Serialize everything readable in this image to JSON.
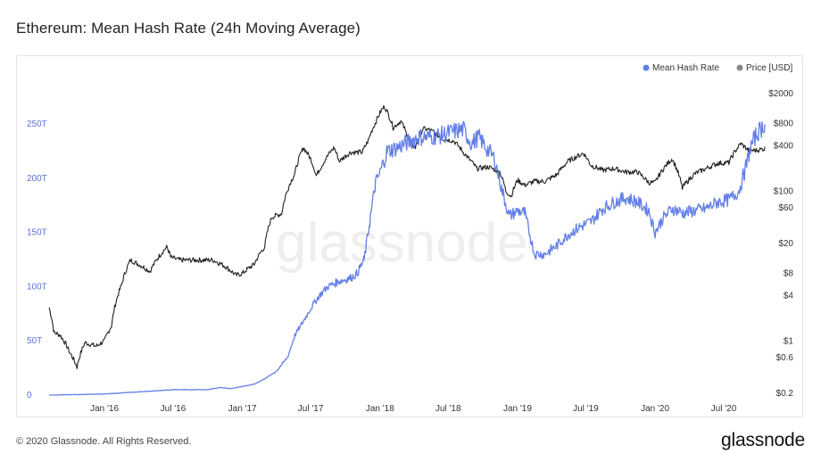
{
  "page": {
    "title": "Ethereum: Mean Hash Rate (24h Moving Average)",
    "copyright": "© 2020 Glassnode. All Rights Reserved.",
    "brand": "glassnode",
    "watermark": "glassnode"
  },
  "colors": {
    "hash": "#627ee6",
    "price": "#222222",
    "legend_price_dot": "#888888"
  },
  "chart_data": {
    "type": "line",
    "title": "Ethereum: Mean Hash Rate (24h Moving Average)",
    "legend_position": "top-right",
    "series": [
      {
        "name": "Mean Hash Rate",
        "axis": "left",
        "unit": "H/s"
      },
      {
        "name": "Price [USD]",
        "axis": "right",
        "scale": "log"
      }
    ],
    "x_labels": [
      "Jan '16",
      "Jul '16",
      "Jan '17",
      "Jul '17",
      "Jan '18",
      "Jul '18",
      "Jan '19",
      "Jul '19",
      "Jan '20",
      "Jul '20"
    ],
    "x_range": [
      "2015-08-07",
      "2020-10-18"
    ],
    "y_left_ticks": [
      "0",
      "50T",
      "100T",
      "150T",
      "200T",
      "250T"
    ],
    "y_left_range": [
      0,
      250
    ],
    "y_right_ticks": [
      "$0.2",
      "$0.6",
      "$1",
      "$4",
      "$8",
      "$20",
      "$60",
      "$100",
      "$400",
      "$800",
      "$2000"
    ],
    "y_right_values": [
      0.2,
      0.6,
      1,
      4,
      8,
      20,
      60,
      100,
      400,
      800,
      2000
    ],
    "hash_rate_T": [
      [
        "2015-08-07",
        0
      ],
      [
        "2016-01-01",
        1
      ],
      [
        "2016-04-01",
        3
      ],
      [
        "2016-07-01",
        5
      ],
      [
        "2016-10-01",
        5
      ],
      [
        "2016-11-01",
        7
      ],
      [
        "2016-12-01",
        6
      ],
      [
        "2017-01-01",
        8
      ],
      [
        "2017-02-01",
        10
      ],
      [
        "2017-03-01",
        15
      ],
      [
        "2017-04-01",
        22
      ],
      [
        "2017-05-01",
        35
      ],
      [
        "2017-05-20",
        55
      ],
      [
        "2017-06-15",
        70
      ],
      [
        "2017-07-01",
        80
      ],
      [
        "2017-07-20",
        90
      ],
      [
        "2017-08-15",
        100
      ],
      [
        "2017-09-15",
        105
      ],
      [
        "2017-10-15",
        108
      ],
      [
        "2017-11-01",
        112
      ],
      [
        "2017-11-20",
        125
      ],
      [
        "2017-12-05",
        160
      ],
      [
        "2017-12-20",
        195
      ],
      [
        "2018-01-01",
        205
      ],
      [
        "2018-01-20",
        225
      ],
      [
        "2018-02-15",
        228
      ],
      [
        "2018-03-15",
        233
      ],
      [
        "2018-04-15",
        238
      ],
      [
        "2018-05-15",
        238
      ],
      [
        "2018-06-15",
        240
      ],
      [
        "2018-07-15",
        243
      ],
      [
        "2018-08-10",
        245
      ],
      [
        "2018-09-01",
        232
      ],
      [
        "2018-09-20",
        238
      ],
      [
        "2018-10-10",
        228
      ],
      [
        "2018-11-01",
        218
      ],
      [
        "2018-11-20",
        190
      ],
      [
        "2018-12-10",
        165
      ],
      [
        "2019-01-01",
        170
      ],
      [
        "2019-01-20",
        168
      ],
      [
        "2019-02-15",
        130
      ],
      [
        "2019-03-15",
        130
      ],
      [
        "2019-04-15",
        138
      ],
      [
        "2019-05-15",
        148
      ],
      [
        "2019-06-15",
        155
      ],
      [
        "2019-07-15",
        160
      ],
      [
        "2019-08-15",
        172
      ],
      [
        "2019-09-15",
        178
      ],
      [
        "2019-10-15",
        182
      ],
      [
        "2019-11-15",
        178
      ],
      [
        "2019-12-15",
        170
      ],
      [
        "2020-01-01",
        150
      ],
      [
        "2020-01-20",
        162
      ],
      [
        "2020-02-15",
        172
      ],
      [
        "2020-03-15",
        168
      ],
      [
        "2020-04-15",
        170
      ],
      [
        "2020-05-15",
        172
      ],
      [
        "2020-06-15",
        178
      ],
      [
        "2020-07-15",
        180
      ],
      [
        "2020-08-10",
        188
      ],
      [
        "2020-08-25",
        205
      ],
      [
        "2020-09-10",
        228
      ],
      [
        "2020-09-25",
        240
      ],
      [
        "2020-10-18",
        250
      ]
    ],
    "price_usd": [
      [
        "2015-08-07",
        2.8
      ],
      [
        "2015-08-20",
        1.3
      ],
      [
        "2015-09-05",
        1.2
      ],
      [
        "2015-10-01",
        0.7
      ],
      [
        "2015-10-20",
        0.45
      ],
      [
        "2015-11-10",
        0.95
      ],
      [
        "2015-12-10",
        0.85
      ],
      [
        "2016-01-01",
        1.0
      ],
      [
        "2016-01-20",
        1.6
      ],
      [
        "2016-02-15",
        5.5
      ],
      [
        "2016-03-10",
        12
      ],
      [
        "2016-03-25",
        11
      ],
      [
        "2016-05-01",
        8.5
      ],
      [
        "2016-06-15",
        18
      ],
      [
        "2016-06-25",
        13
      ],
      [
        "2016-07-20",
        12
      ],
      [
        "2016-09-01",
        12
      ],
      [
        "2016-10-15",
        12
      ],
      [
        "2016-11-15",
        10
      ],
      [
        "2016-12-15",
        7.5
      ],
      [
        "2017-01-01",
        8
      ],
      [
        "2017-02-01",
        10.5
      ],
      [
        "2017-03-01",
        18
      ],
      [
        "2017-03-20",
        45
      ],
      [
        "2017-04-15",
        50
      ],
      [
        "2017-05-20",
        170
      ],
      [
        "2017-06-12",
        380
      ],
      [
        "2017-07-01",
        270
      ],
      [
        "2017-07-16",
        160
      ],
      [
        "2017-08-01",
        225
      ],
      [
        "2017-09-01",
        380
      ],
      [
        "2017-09-15",
        250
      ],
      [
        "2017-10-15",
        330
      ],
      [
        "2017-11-15",
        330
      ],
      [
        "2017-12-01",
        470
      ],
      [
        "2017-12-20",
        820
      ],
      [
        "2018-01-05",
        1200
      ],
      [
        "2018-01-13",
        1350
      ],
      [
        "2018-02-05",
        700
      ],
      [
        "2018-02-25",
        860
      ],
      [
        "2018-03-20",
        450
      ],
      [
        "2018-04-05",
        380
      ],
      [
        "2018-04-25",
        680
      ],
      [
        "2018-05-15",
        650
      ],
      [
        "2018-06-15",
        500
      ],
      [
        "2018-07-15",
        470
      ],
      [
        "2018-08-10",
        330
      ],
      [
        "2018-08-25",
        270
      ],
      [
        "2018-09-15",
        200
      ],
      [
        "2018-10-15",
        210
      ],
      [
        "2018-11-15",
        180
      ],
      [
        "2018-12-01",
        100
      ],
      [
        "2018-12-15",
        85
      ],
      [
        "2019-01-01",
        140
      ],
      [
        "2019-01-20",
        120
      ],
      [
        "2019-02-15",
        135
      ],
      [
        "2019-03-15",
        135
      ],
      [
        "2019-04-15",
        165
      ],
      [
        "2019-05-15",
        250
      ],
      [
        "2019-06-25",
        320
      ],
      [
        "2019-07-15",
        220
      ],
      [
        "2019-08-15",
        190
      ],
      [
        "2019-09-15",
        200
      ],
      [
        "2019-10-15",
        180
      ],
      [
        "2019-11-15",
        180
      ],
      [
        "2019-12-15",
        130
      ],
      [
        "2020-01-01",
        130
      ],
      [
        "2020-02-15",
        270
      ],
      [
        "2020-03-13",
        110
      ],
      [
        "2020-04-15",
        170
      ],
      [
        "2020-05-15",
        200
      ],
      [
        "2020-06-15",
        235
      ],
      [
        "2020-07-15",
        240
      ],
      [
        "2020-08-15",
        430
      ],
      [
        "2020-09-05",
        350
      ],
      [
        "2020-09-25",
        350
      ],
      [
        "2020-10-18",
        370
      ]
    ]
  }
}
